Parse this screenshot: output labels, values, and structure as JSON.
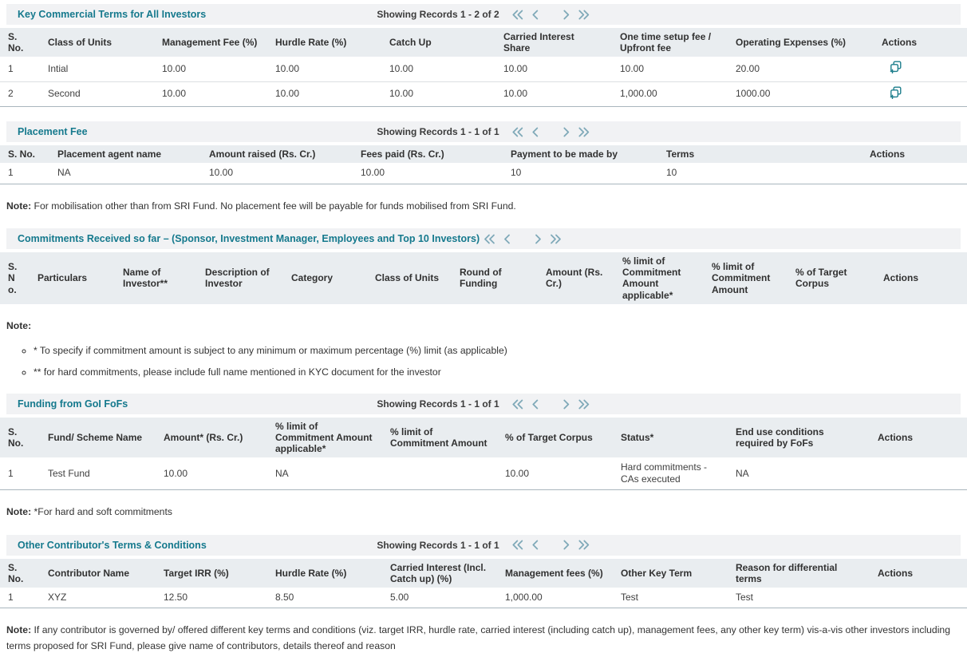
{
  "colors": {
    "accent_teal": "#15798d",
    "pager_arrow": "#7fa9b8",
    "action_icon": "#1d7e8c",
    "header_row_bg": "#e9edf0",
    "title_bar_bg": "#f1f2f4"
  },
  "icons": {
    "first_page": "double-chevron-left",
    "prev_page": "chevron-left",
    "next_page": "chevron-right",
    "last_page": "double-chevron-right",
    "row_action": "duplicate-record-icon"
  },
  "sections": [
    {
      "title": "Key Commercial Terms for All Investors",
      "showing": "Showing Records 1 - 2 of 2",
      "columns": [
        "S. No.",
        "Class of Units",
        "Management Fee (%)",
        "Hurdle Rate (%)",
        "Catch Up",
        "Carried Interest Share",
        "One time setup fee / Upfront fee",
        "Operating Expenses (%)",
        "Actions"
      ],
      "rows": [
        {
          "cells": [
            "1",
            "Intial",
            "10.00",
            "10.00",
            "10.00",
            "10.00",
            "10.00",
            "20.00"
          ],
          "action": true
        },
        {
          "cells": [
            "2",
            "Second",
            "10.00",
            "10.00",
            "10.00",
            "10.00",
            "1,000.00",
            "1000.00"
          ],
          "action": true
        }
      ],
      "note": null,
      "bullets": null
    },
    {
      "title": "Placement Fee",
      "showing": "Showing Records 1 - 1 of 1",
      "columns": [
        "S. No.",
        "Placement agent name",
        "Amount raised (Rs. Cr.)",
        "Fees paid (Rs. Cr.)",
        "Payment to be made by",
        "Terms",
        "Actions"
      ],
      "rows": [
        {
          "cells": [
            "1",
            "NA",
            "10.00",
            "10.00",
            "10",
            "10"
          ],
          "action": false
        }
      ],
      "note": {
        "label": "Note:",
        "text": "For mobilisation other than from SRI Fund. No placement fee will be payable for funds mobilised from SRI Fund."
      },
      "bullets": null
    },
    {
      "title": "Commitments Received so far – (Sponsor, Investment Manager, Employees and Top 10 Investors)",
      "showing": "",
      "columns": [
        "S. No.",
        "Particulars",
        "Name of Investor**",
        "Description of Investor",
        "Category",
        "Class of Units",
        "Round of Funding",
        "Amount (Rs. Cr.)",
        "% limit of Commitment Amount applicable*",
        "% limit of Commitment Amount",
        "% of Target Corpus",
        "Actions"
      ],
      "rows": [],
      "note": {
        "label": "Note:",
        "text": ""
      },
      "bullets": [
        "* To specify if commitment amount is subject to any minimum or maximum percentage (%) limit (as applicable)",
        "** for hard commitments, please include full name mentioned in KYC document for the investor"
      ]
    },
    {
      "title": "Funding from GoI FoFs",
      "showing": "Showing Records 1 - 1 of 1",
      "columns": [
        "S. No.",
        "Fund/ Scheme Name",
        "Amount* (Rs. Cr.)",
        "% limit of Commitment Amount applicable*",
        "% limit of Commitment Amount",
        "% of Target Corpus",
        "Status*",
        "End use conditions required by FoFs",
        "Actions"
      ],
      "rows": [
        {
          "cells": [
            "1",
            "Test Fund",
            "10.00",
            "NA",
            "",
            "10.00",
            "Hard commitments - CAs executed",
            "NA"
          ],
          "action": false
        }
      ],
      "note": {
        "label": "Note:",
        "text": "*For hard and soft commitments"
      },
      "bullets": null
    },
    {
      "title": "Other Contributor's Terms & Conditions",
      "showing": "Showing Records 1 - 1 of 1",
      "columns": [
        "S. No.",
        "Contributor Name",
        "Target IRR (%)",
        "Hurdle Rate (%)",
        "Carried Interest (Incl. Catch up) (%)",
        "Management fees (%)",
        "Other Key Term",
        "Reason for differential terms",
        "Actions"
      ],
      "rows": [
        {
          "cells": [
            "1",
            "XYZ",
            "12.50",
            "8.50",
            "5.00",
            "1,000.00",
            "Test",
            "Test"
          ],
          "action": false
        }
      ],
      "note": {
        "label": "Note:",
        "text": "If any contributor is governed by/ offered different key terms and conditions (viz. target IRR, hurdle rate, carried interest (including catch up), management fees, any other key term) vis-a-vis other investors including terms proposed for SRI Fund, please give name of contributors, details thereof and reason"
      },
      "bullets": null
    }
  ]
}
